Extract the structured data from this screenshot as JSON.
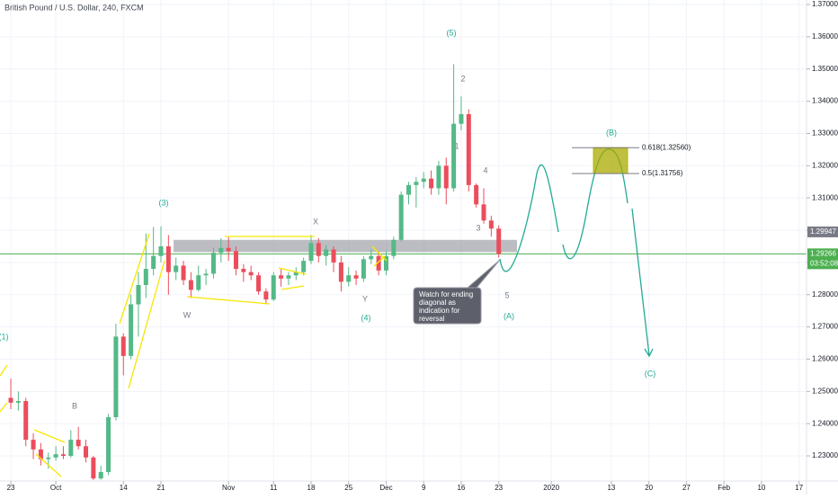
{
  "chart_data": {
    "type": "candlestick",
    "title": "British Pound / U.S. Dollar, 240, FXCM",
    "x": [
      0,
      1,
      2,
      3,
      4,
      5,
      6,
      7,
      8,
      9,
      10,
      11,
      12,
      13,
      14,
      15,
      16,
      17,
      18,
      19,
      20,
      21,
      22,
      23,
      24,
      25,
      26,
      27,
      28,
      29,
      30,
      31,
      32,
      33,
      34,
      35,
      36,
      37,
      38,
      39,
      40,
      41,
      42,
      43,
      44,
      45,
      46,
      47,
      48,
      49,
      50,
      51,
      52,
      53,
      54,
      55,
      56,
      57,
      58,
      59,
      60,
      61,
      62,
      63,
      64,
      65
    ],
    "open": [
      1.248,
      1.2465,
      1.247,
      1.235,
      1.232,
      1.229,
      1.2295,
      1.2305,
      1.23,
      1.235,
      1.233,
      1.2295,
      1.223,
      1.225,
      1.242,
      1.267,
      1.261,
      1.277,
      1.283,
      1.288,
      1.292,
      1.295,
      1.287,
      1.289,
      1.2845,
      1.2815,
      1.286,
      1.2865,
      1.293,
      1.2945,
      1.2935,
      1.288,
      1.287,
      1.286,
      1.281,
      1.2785,
      1.286,
      1.285,
      1.286,
      1.287,
      1.2905,
      1.296,
      1.292,
      1.294,
      1.29,
      1.284,
      1.286,
      1.285,
      1.291,
      1.292,
      1.2875,
      1.292,
      1.297,
      1.311,
      1.314,
      1.315,
      1.316,
      1.313,
      1.32,
      1.313,
      1.333,
      1.336,
      1.314,
      1.308,
      1.303,
      1.3005
    ],
    "high": [
      1.254,
      1.25,
      1.248,
      1.237,
      1.234,
      1.231,
      1.233,
      1.233,
      1.238,
      1.239,
      1.235,
      1.23,
      1.227,
      1.243,
      1.271,
      1.268,
      1.28,
      1.287,
      1.299,
      1.301,
      1.3012,
      1.2985,
      1.2915,
      1.2905,
      1.287,
      1.289,
      1.288,
      1.2945,
      1.2975,
      1.2978,
      1.295,
      1.2895,
      1.289,
      1.287,
      1.282,
      1.287,
      1.288,
      1.287,
      1.2885,
      1.2915,
      1.2985,
      1.2975,
      1.2955,
      1.295,
      1.292,
      1.2885,
      1.2875,
      1.292,
      1.294,
      1.2935,
      1.2935,
      1.298,
      1.312,
      1.315,
      1.3165,
      1.318,
      1.3185,
      1.3215,
      1.3225,
      1.3515,
      1.3415,
      1.3375,
      1.3145,
      1.313,
      1.3045,
      1.3015
    ],
    "low": [
      1.2445,
      1.244,
      1.233,
      1.229,
      1.227,
      1.226,
      1.2285,
      1.229,
      1.2295,
      1.232,
      1.228,
      1.2225,
      1.2226,
      1.224,
      1.241,
      1.255,
      1.26,
      1.267,
      1.279,
      1.286,
      1.29,
      1.28,
      1.2845,
      1.283,
      1.279,
      1.281,
      1.283,
      1.285,
      1.29,
      1.2905,
      1.286,
      1.284,
      1.2845,
      1.28,
      1.277,
      1.278,
      1.2825,
      1.283,
      1.2845,
      1.286,
      1.2895,
      1.29,
      1.289,
      1.287,
      1.281,
      1.2825,
      1.283,
      1.284,
      1.2895,
      1.286,
      1.286,
      1.291,
      1.2965,
      1.308,
      1.307,
      1.313,
      1.311,
      1.311,
      1.308,
      1.312,
      1.331,
      1.312,
      1.307,
      1.302,
      1.298,
      1.2915
    ],
    "close": [
      1.2465,
      1.247,
      1.235,
      1.232,
      1.229,
      1.2295,
      1.2305,
      1.23,
      1.235,
      1.233,
      1.2295,
      1.223,
      1.225,
      1.242,
      1.267,
      1.261,
      1.277,
      1.283,
      1.288,
      1.292,
      1.295,
      1.287,
      1.289,
      1.2845,
      1.2815,
      1.286,
      1.2865,
      1.293,
      1.2945,
      1.2935,
      1.288,
      1.287,
      1.286,
      1.281,
      1.2785,
      1.286,
      1.285,
      1.286,
      1.287,
      1.2905,
      1.296,
      1.292,
      1.294,
      1.29,
      1.284,
      1.286,
      1.285,
      1.291,
      1.292,
      1.2875,
      1.292,
      1.297,
      1.311,
      1.314,
      1.315,
      1.316,
      1.313,
      1.32,
      1.313,
      1.333,
      1.336,
      1.314,
      1.308,
      1.303,
      1.3005,
      1.29266
    ],
    "up_color": "#53b987",
    "down_color": "#eb4d5c",
    "xlim": [
      -1.44,
      106
    ],
    "xticks": [
      {
        "value": 0,
        "label": "23"
      },
      {
        "value": 6,
        "label": "Oct"
      },
      {
        "value": 15,
        "label": "14"
      },
      {
        "value": 20,
        "label": "21"
      },
      {
        "value": 29,
        "label": "Nov"
      },
      {
        "value": 35,
        "label": "11"
      },
      {
        "value": 40,
        "label": "18"
      },
      {
        "value": 45,
        "label": "25"
      },
      {
        "value": 50,
        "label": "Dec"
      },
      {
        "value": 55,
        "label": "9"
      },
      {
        "value": 60,
        "label": "16"
      },
      {
        "value": 65,
        "label": "23"
      },
      {
        "value": 72,
        "label": "2020"
      },
      {
        "value": 80,
        "label": "13"
      },
      {
        "value": 85,
        "label": "20"
      },
      {
        "value": 90,
        "label": "27"
      },
      {
        "value": 95,
        "label": "Feb"
      },
      {
        "value": 100,
        "label": "10"
      },
      {
        "value": 105,
        "label": "17"
      }
    ],
    "ylim": [
      1.2222,
      1.3714
    ],
    "yticks": [
      {
        "value": 1.23,
        "label": "1.23000"
      },
      {
        "value": 1.24,
        "label": "1.24000"
      },
      {
        "value": 1.25,
        "label": "1.25000"
      },
      {
        "value": 1.26,
        "label": "1.26000"
      },
      {
        "value": 1.27,
        "label": "1.27000"
      },
      {
        "value": 1.28,
        "label": "1.28000"
      },
      {
        "value": 1.29,
        "label": "1.29000"
      },
      {
        "value": 1.3,
        "label": "1.30000"
      },
      {
        "value": 1.31,
        "label": "1.31000"
      },
      {
        "value": 1.32,
        "label": "1.32000"
      },
      {
        "value": 1.33,
        "label": "1.33000"
      },
      {
        "value": 1.34,
        "label": "1.34000"
      },
      {
        "value": 1.35,
        "label": "1.35000"
      },
      {
        "value": 1.36,
        "label": "1.36000"
      },
      {
        "value": 1.37,
        "label": "1.37000"
      }
    ],
    "grid": true,
    "zone": [
      1.2932,
      1.297
    ],
    "marked_level": 1.29947,
    "last_price": 1.29266,
    "countdown": "03:52:08",
    "fib_levels": [
      {
        "value": 1.3256,
        "label": "0.618(1.32560)"
      },
      {
        "value": 1.31756,
        "label": "0.5(1.31756)"
      }
    ],
    "annotations": [
      "(1)",
      "B",
      "(3)",
      "W",
      "X",
      "Y",
      "(4)",
      "(5)",
      "1",
      "2",
      "3",
      "4",
      "5",
      "(A)",
      "(B)",
      "(C)"
    ],
    "callout": [
      "Watch for ending",
      "diagonal as",
      "indication for",
      "reversal"
    ]
  }
}
